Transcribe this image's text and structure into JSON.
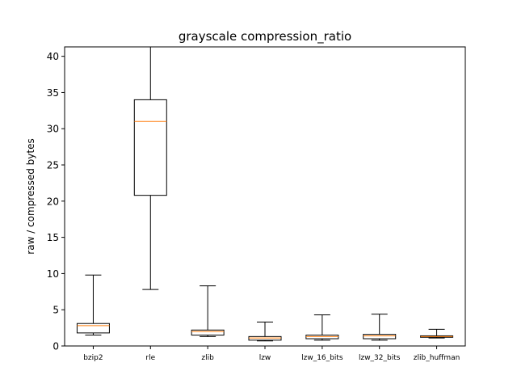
{
  "chart_data": {
    "type": "box",
    "title": "grayscale compression_ratio",
    "xlabel": "",
    "ylabel": "raw / compressed bytes",
    "ylim": [
      0,
      41.3
    ],
    "yticks": [
      0,
      5,
      10,
      15,
      20,
      25,
      30,
      35,
      40
    ],
    "grid": false,
    "categories": [
      "bzip2",
      "rle",
      "zlib",
      "lzw",
      "lzw_16_bits",
      "lzw_32_bits",
      "zlib_huffman"
    ],
    "boxes": [
      {
        "category": "bzip2",
        "whislo": 1.5,
        "q1": 1.8,
        "med": 2.8,
        "q3": 3.1,
        "whishi": 9.8
      },
      {
        "category": "rle",
        "whislo": 7.8,
        "q1": 20.8,
        "med": 31.0,
        "q3": 34.0,
        "whishi": 41.3
      },
      {
        "category": "zlib",
        "whislo": 1.3,
        "q1": 1.5,
        "med": 2.0,
        "q3": 2.2,
        "whishi": 8.3
      },
      {
        "category": "lzw",
        "whislo": 0.7,
        "q1": 0.8,
        "med": 1.1,
        "q3": 1.3,
        "whishi": 3.3
      },
      {
        "category": "lzw_16_bits",
        "whislo": 0.8,
        "q1": 1.0,
        "med": 1.3,
        "q3": 1.5,
        "whishi": 4.3
      },
      {
        "category": "lzw_32_bits",
        "whislo": 0.8,
        "q1": 1.0,
        "med": 1.4,
        "q3": 1.6,
        "whishi": 4.4
      },
      {
        "category": "zlib_huffman",
        "whislo": 1.1,
        "q1": 1.2,
        "med": 1.3,
        "q3": 1.4,
        "whishi": 2.3
      }
    ],
    "colors": {
      "box": "#000000",
      "median": "#ff7f0e",
      "background": "#ffffff"
    }
  }
}
